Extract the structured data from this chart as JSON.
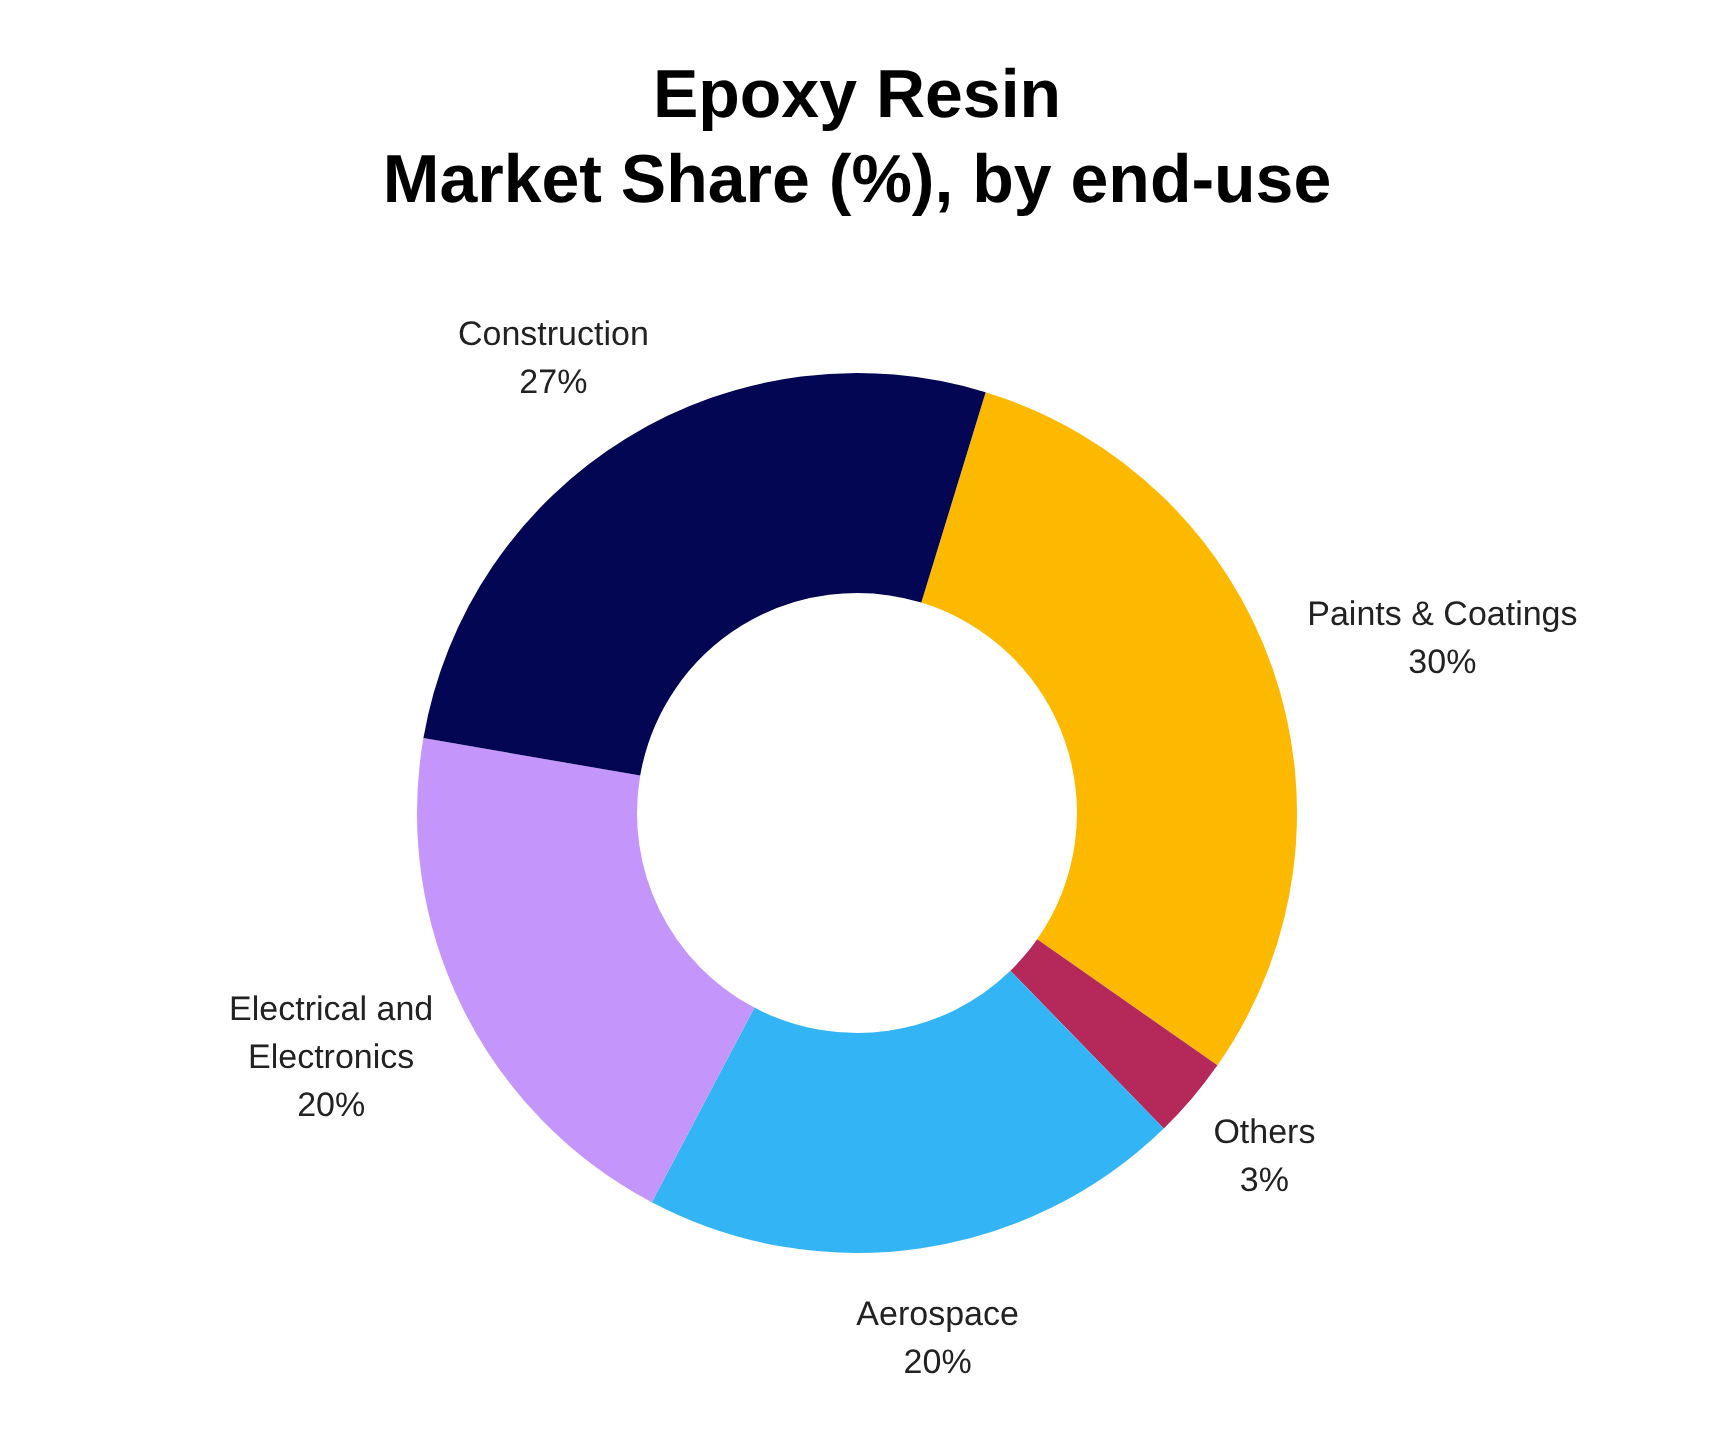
{
  "chart_data": {
    "type": "donut",
    "title": "Epoxy Resin\nMarket Share (%), by end-use",
    "categories": [
      "Paints & Coatings",
      "Others",
      "Aerospace",
      "Electrical and Electronics",
      "Construction"
    ],
    "values": [
      30,
      3,
      20,
      20,
      27
    ],
    "colors": [
      "#fdb900",
      "#b5285a",
      "#33b5f5",
      "#c495fb",
      "#020653"
    ],
    "value_labels": [
      "30%",
      "3%",
      "20%",
      "20%",
      "27%"
    ],
    "legend": false
  }
}
